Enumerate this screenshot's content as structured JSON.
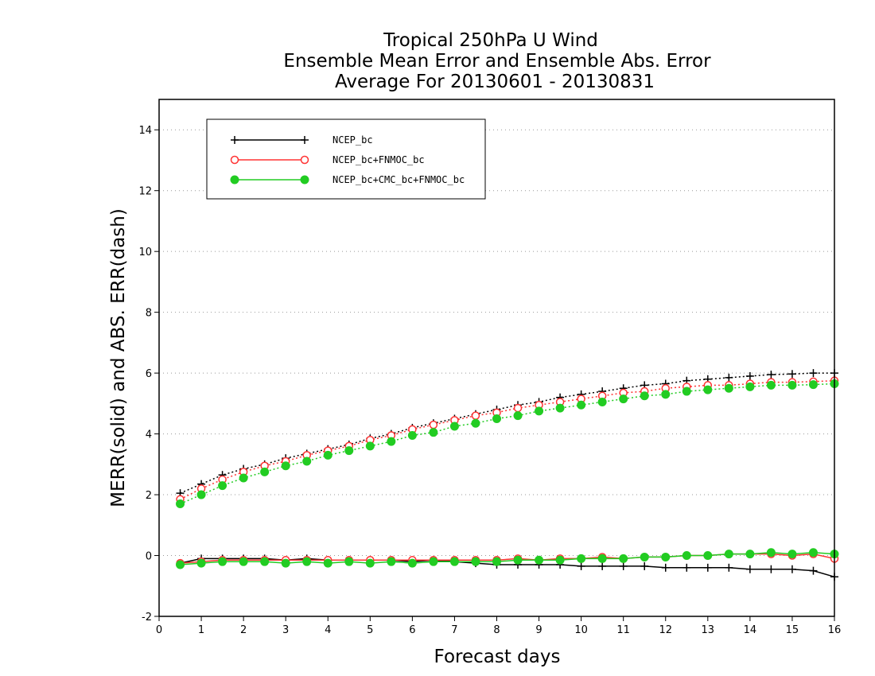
{
  "chart_data": {
    "type": "line",
    "title_lines": [
      "Tropical 250hPa U Wind",
      "Ensemble Mean Error and Ensemble Abs. Error",
      "Average For 20130601 - 20130831"
    ],
    "xlabel": "Forecast days",
    "ylabel": "MERR(solid) and ABS. ERR(dash)",
    "xlim": [
      0,
      16
    ],
    "ylim": [
      -2,
      15
    ],
    "x_ticks": [
      "0",
      "1",
      "2",
      "3",
      "4",
      "5",
      "6",
      "7",
      "8",
      "9",
      "10",
      "11",
      "12",
      "13",
      "14",
      "15",
      "16"
    ],
    "y_ticks": [
      "-2",
      "0",
      "2",
      "4",
      "6",
      "8",
      "10",
      "12",
      "14"
    ],
    "grid": "horizontal dotted",
    "legend_position": "top-left",
    "x": [
      0.5,
      1,
      1.5,
      2,
      2.5,
      3,
      3.5,
      4,
      4.5,
      5,
      5.5,
      6,
      6.5,
      7,
      7.5,
      8,
      8.5,
      9,
      9.5,
      10,
      10.5,
      11,
      11.5,
      12,
      12.5,
      13,
      13.5,
      14,
      14.5,
      15,
      15.5,
      16
    ],
    "series": [
      {
        "name": "NCEP_bc",
        "color": "#000000",
        "marker": "plus",
        "merr": [
          -0.25,
          -0.1,
          -0.1,
          -0.1,
          -0.1,
          -0.15,
          -0.1,
          -0.15,
          -0.15,
          -0.15,
          -0.15,
          -0.2,
          -0.15,
          -0.2,
          -0.25,
          -0.3,
          -0.3,
          -0.3,
          -0.3,
          -0.35,
          -0.35,
          -0.35,
          -0.35,
          -0.4,
          -0.4,
          -0.4,
          -0.4,
          -0.45,
          -0.45,
          -0.45,
          -0.5,
          -0.7
        ],
        "abs_err": [
          2.05,
          2.35,
          2.65,
          2.85,
          3.0,
          3.2,
          3.35,
          3.5,
          3.65,
          3.85,
          4.0,
          4.2,
          4.35,
          4.5,
          4.65,
          4.8,
          4.95,
          5.05,
          5.2,
          5.3,
          5.4,
          5.5,
          5.6,
          5.65,
          5.75,
          5.8,
          5.85,
          5.9,
          5.95,
          5.97,
          6.0,
          6.0
        ]
      },
      {
        "name": "NCEP_bc+FNMOC_bc",
        "color": "#ff3333",
        "marker": "open-circle",
        "merr": [
          -0.25,
          -0.2,
          -0.15,
          -0.15,
          -0.15,
          -0.15,
          -0.15,
          -0.15,
          -0.15,
          -0.15,
          -0.15,
          -0.15,
          -0.15,
          -0.15,
          -0.15,
          -0.15,
          -0.1,
          -0.15,
          -0.1,
          -0.1,
          -0.05,
          -0.1,
          -0.05,
          -0.05,
          0.0,
          0.0,
          0.05,
          0.05,
          0.05,
          0.0,
          0.05,
          -0.1
        ],
        "abs_err": [
          1.85,
          2.2,
          2.5,
          2.75,
          2.95,
          3.1,
          3.3,
          3.45,
          3.6,
          3.8,
          3.95,
          4.15,
          4.3,
          4.45,
          4.6,
          4.7,
          4.85,
          4.95,
          5.05,
          5.15,
          5.25,
          5.35,
          5.4,
          5.5,
          5.55,
          5.6,
          5.6,
          5.65,
          5.7,
          5.7,
          5.72,
          5.75
        ]
      },
      {
        "name": "NCEP_bc+CMC_bc+FNMOC_bc",
        "color": "#22cc22",
        "marker": "filled-circle",
        "merr": [
          -0.3,
          -0.25,
          -0.2,
          -0.2,
          -0.2,
          -0.25,
          -0.2,
          -0.25,
          -0.2,
          -0.25,
          -0.2,
          -0.25,
          -0.2,
          -0.2,
          -0.2,
          -0.2,
          -0.15,
          -0.15,
          -0.15,
          -0.1,
          -0.1,
          -0.1,
          -0.05,
          -0.05,
          0.0,
          0.0,
          0.05,
          0.05,
          0.1,
          0.05,
          0.1,
          0.05
        ],
        "abs_err": [
          1.7,
          2.0,
          2.3,
          2.55,
          2.75,
          2.95,
          3.1,
          3.3,
          3.45,
          3.6,
          3.75,
          3.95,
          4.05,
          4.25,
          4.35,
          4.5,
          4.6,
          4.75,
          4.85,
          4.95,
          5.05,
          5.15,
          5.25,
          5.3,
          5.4,
          5.45,
          5.5,
          5.55,
          5.6,
          5.6,
          5.62,
          5.65
        ]
      }
    ]
  }
}
